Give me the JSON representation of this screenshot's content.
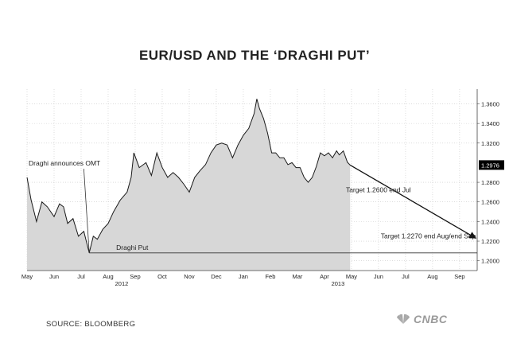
{
  "title": "EUR/USD AND THE ‘DRAGHI PUT’",
  "source": "SOURCE: BLOOMBERG",
  "brand": "CNBC",
  "colors": {
    "fill": "#d7d7d7",
    "line": "#1a1a1a",
    "grid": "#c8c8c8",
    "last_value_box": "#000000"
  },
  "chart_data": {
    "type": "area",
    "title": "EUR/USD AND THE ‘DRAGHI PUT’",
    "xlabel": "",
    "ylabel": "",
    "ylim": [
      1.19,
      1.375
    ],
    "y_ticks": [
      "1.3600",
      "1.3400",
      "1.3200",
      "1.2800",
      "1.2600",
      "1.2400",
      "1.2200",
      "1.2000"
    ],
    "x_ticks": [
      "May",
      "Jun",
      "Jul",
      "Aug",
      "Sep",
      "Oct",
      "Nov",
      "Dec",
      "Jan",
      "Feb",
      "Mar",
      "Apr",
      "May",
      "Jun",
      "Jul",
      "Aug",
      "Sep"
    ],
    "x_year_labels": [
      {
        "after": "Aug",
        "label": "2012"
      },
      {
        "after": "Apr",
        "label": "2013"
      }
    ],
    "last_value": "1.2976",
    "grid": true,
    "series": [
      {
        "values": [
          [
            0.0,
            1.285
          ],
          [
            0.15,
            1.262
          ],
          [
            0.35,
            1.24
          ],
          [
            0.55,
            1.26
          ],
          [
            0.75,
            1.255
          ],
          [
            1.0,
            1.245
          ],
          [
            1.2,
            1.258
          ],
          [
            1.35,
            1.255
          ],
          [
            1.5,
            1.238
          ],
          [
            1.7,
            1.243
          ],
          [
            1.9,
            1.225
          ],
          [
            2.1,
            1.23
          ],
          [
            2.3,
            1.208
          ],
          [
            2.45,
            1.225
          ],
          [
            2.6,
            1.222
          ],
          [
            2.8,
            1.232
          ],
          [
            3.0,
            1.238
          ],
          [
            3.2,
            1.25
          ],
          [
            3.45,
            1.262
          ],
          [
            3.7,
            1.27
          ],
          [
            3.85,
            1.285
          ],
          [
            3.95,
            1.31
          ],
          [
            4.15,
            1.295
          ],
          [
            4.4,
            1.3
          ],
          [
            4.6,
            1.287
          ],
          [
            4.8,
            1.31
          ],
          [
            5.0,
            1.295
          ],
          [
            5.2,
            1.285
          ],
          [
            5.4,
            1.29
          ],
          [
            5.6,
            1.285
          ],
          [
            5.8,
            1.278
          ],
          [
            6.0,
            1.27
          ],
          [
            6.2,
            1.285
          ],
          [
            6.4,
            1.292
          ],
          [
            6.6,
            1.298
          ],
          [
            6.8,
            1.31
          ],
          [
            7.0,
            1.318
          ],
          [
            7.2,
            1.32
          ],
          [
            7.4,
            1.318
          ],
          [
            7.6,
            1.305
          ],
          [
            7.8,
            1.318
          ],
          [
            8.0,
            1.328
          ],
          [
            8.2,
            1.335
          ],
          [
            8.4,
            1.35
          ],
          [
            8.5,
            1.365
          ],
          [
            8.6,
            1.355
          ],
          [
            8.75,
            1.345
          ],
          [
            8.9,
            1.33
          ],
          [
            9.05,
            1.31
          ],
          [
            9.2,
            1.31
          ],
          [
            9.35,
            1.305
          ],
          [
            9.5,
            1.305
          ],
          [
            9.65,
            1.298
          ],
          [
            9.8,
            1.3
          ],
          [
            9.95,
            1.295
          ],
          [
            10.1,
            1.295
          ],
          [
            10.25,
            1.285
          ],
          [
            10.4,
            1.28
          ],
          [
            10.55,
            1.285
          ],
          [
            10.7,
            1.296
          ],
          [
            10.85,
            1.31
          ],
          [
            11.0,
            1.307
          ],
          [
            11.15,
            1.31
          ],
          [
            11.3,
            1.305
          ],
          [
            11.45,
            1.312
          ],
          [
            11.55,
            1.308
          ],
          [
            11.7,
            1.312
          ],
          [
            11.85,
            1.3005
          ],
          [
            11.95,
            1.2976
          ]
        ]
      }
    ],
    "annotations": [
      {
        "text": "Draghi announces OMT",
        "x": 2.3,
        "y": 1.208
      },
      {
        "text": "Draghi Put",
        "level": 1.208
      },
      {
        "text": "Target 1.2600 end Jul",
        "x": 14.2,
        "y": 1.27
      },
      {
        "text": "Target 1.2270 end Aug/end Sep",
        "x": 16.6,
        "y": 1.223
      }
    ],
    "projection": [
      [
        11.95,
        1.2976
      ],
      [
        16.6,
        1.223
      ]
    ]
  }
}
